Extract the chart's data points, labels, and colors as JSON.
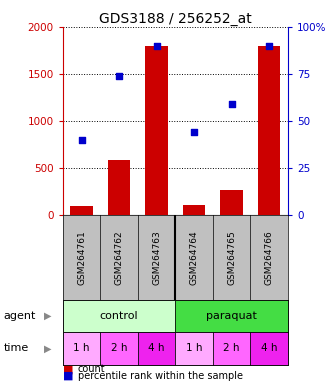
{
  "title": "GDS3188 / 256252_at",
  "samples": [
    "GSM264761",
    "GSM264762",
    "GSM264763",
    "GSM264764",
    "GSM264765",
    "GSM264766"
  ],
  "bar_values": [
    100,
    580,
    1800,
    110,
    270,
    1800
  ],
  "pct_values": [
    40,
    74,
    90,
    44,
    59,
    90
  ],
  "ylim_left": [
    0,
    2000
  ],
  "ylim_right": [
    0,
    100
  ],
  "bar_color": "#cc0000",
  "dot_color": "#0000cc",
  "yticks_left": [
    0,
    500,
    1000,
    1500,
    2000
  ],
  "yticks_right": [
    0,
    25,
    50,
    75,
    100
  ],
  "ytick_labels_right": [
    "0",
    "25",
    "50",
    "75",
    "100%"
  ],
  "agent_labels": [
    "control",
    "paraquat"
  ],
  "control_color": "#ccffcc",
  "paraquat_color": "#44dd44",
  "time_color_1h": "#ffaaff",
  "time_color_2h": "#ff66ff",
  "time_color_4h": "#ee22ee",
  "time_labels": [
    "1 h",
    "2 h",
    "4 h",
    "1 h",
    "2 h",
    "4 h"
  ],
  "bg_color": "#ffffff",
  "left_axis_color": "#cc0000",
  "right_axis_color": "#0000cc",
  "bar_width": 0.6,
  "sample_bg_color": "#c0c0c0"
}
